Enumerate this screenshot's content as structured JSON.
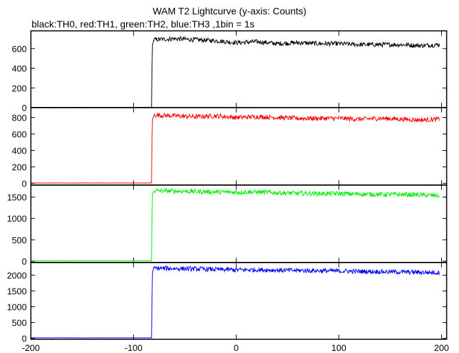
{
  "title": "WAM T2 Lightcurve (y-axis: Counts)",
  "subtitle": "black:TH0, red:TH1, green:TH2, blue:TH3 ,1bin = 1s",
  "chart_data": {
    "type": "line",
    "x_range": [
      -200,
      205
    ],
    "x_ticks": [
      -200,
      -100,
      0,
      100,
      200
    ],
    "x_tick_labels": [
      "-200",
      "-100",
      "0",
      "100",
      "200"
    ],
    "panels": [
      {
        "name": "TH0",
        "color": "#000000",
        "ylim": [
          0,
          780
        ],
        "y_ticks": [
          0,
          200,
          400,
          600
        ],
        "y_tick_labels": [
          "0",
          "200",
          "400",
          "600"
        ],
        "x": [
          -200,
          -82.5,
          -82,
          -81.5,
          -80,
          -60,
          -40,
          -20,
          0,
          20,
          40,
          60,
          80,
          100,
          120,
          140,
          160,
          180,
          198
        ],
        "y": [
          2,
          2,
          420,
          640,
          690,
          700,
          690,
          680,
          660,
          670,
          650,
          660,
          650,
          650,
          640,
          640,
          640,
          630,
          640
        ]
      },
      {
        "name": "TH1",
        "color": "#ff0000",
        "ylim": [
          -20,
          920
        ],
        "y_ticks": [
          0,
          200,
          400,
          600,
          800
        ],
        "y_tick_labels": [
          "0",
          "200",
          "400",
          "600",
          "800"
        ],
        "x": [
          -200,
          -82.5,
          -82,
          -81.5,
          -80,
          -60,
          -40,
          -20,
          0,
          20,
          40,
          60,
          80,
          100,
          120,
          140,
          160,
          180,
          198
        ],
        "y": [
          5,
          5,
          550,
          780,
          830,
          820,
          810,
          820,
          800,
          810,
          800,
          790,
          790,
          790,
          780,
          790,
          780,
          770,
          780
        ]
      },
      {
        "name": "TH2",
        "color": "#00ee00",
        "ylim": [
          -30,
          1780
        ],
        "y_ticks": [
          0,
          500,
          1000,
          1500
        ],
        "y_tick_labels": [
          "0",
          "500",
          "1000",
          "1500"
        ],
        "x": [
          -200,
          -82.5,
          -82,
          -81.5,
          -80,
          -60,
          -40,
          -20,
          0,
          20,
          40,
          60,
          80,
          100,
          120,
          140,
          160,
          180,
          198
        ],
        "y": [
          10,
          10,
          1100,
          1580,
          1650,
          1640,
          1630,
          1620,
          1610,
          1620,
          1600,
          1590,
          1580,
          1580,
          1570,
          1560,
          1560,
          1550,
          1530
        ]
      },
      {
        "name": "TH3",
        "color": "#0000ff",
        "ylim": [
          -30,
          2400
        ],
        "y_ticks": [
          0,
          500,
          1000,
          1500,
          2000
        ],
        "y_tick_labels": [
          "0",
          "500",
          "1000",
          "1500",
          "2000"
        ],
        "x": [
          -200,
          -82.5,
          -82,
          -81.5,
          -80,
          -60,
          -40,
          -20,
          0,
          20,
          40,
          60,
          80,
          100,
          120,
          140,
          160,
          180,
          198
        ],
        "y": [
          15,
          15,
          1300,
          2100,
          2220,
          2210,
          2200,
          2180,
          2170,
          2170,
          2160,
          2150,
          2140,
          2130,
          2120,
          2110,
          2100,
          2090,
          2080
        ]
      }
    ],
    "grid": false,
    "legend": "none"
  }
}
